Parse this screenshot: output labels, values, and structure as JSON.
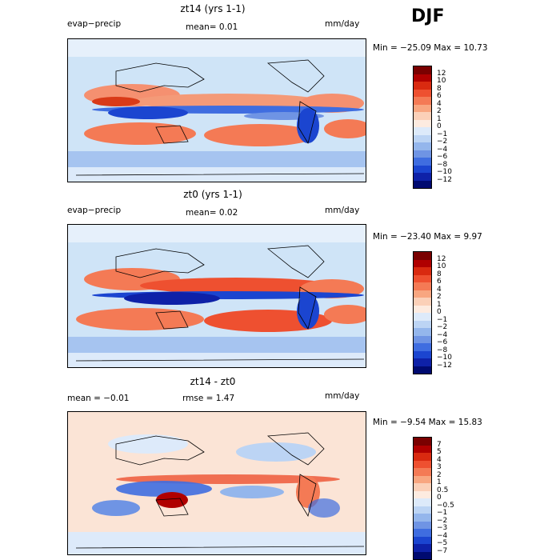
{
  "season": "DJF",
  "panels": [
    {
      "title": "zt14 (yrs 1-1)",
      "left_label": "evap−precip",
      "mid_label": "mean=   0.01",
      "units": "mm/day",
      "minmax": "Min = −25.09 Max =  10.73",
      "colorbar_ticks": [
        "12",
        "10",
        "8",
        "6",
        "4",
        "2",
        "1",
        "0",
        "−1",
        "−2",
        "−4",
        "−6",
        "−8",
        "−10",
        "−12"
      ]
    },
    {
      "title": "zt0 (yrs 1-1)",
      "left_label": "evap−precip",
      "mid_label": "mean=   0.02",
      "units": "mm/day",
      "minmax": "Min = −23.40 Max =   9.97",
      "colorbar_ticks": [
        "12",
        "10",
        "8",
        "6",
        "4",
        "2",
        "1",
        "0",
        "−1",
        "−2",
        "−4",
        "−6",
        "−8",
        "−10",
        "−12"
      ]
    },
    {
      "title": "zt14 - zt0",
      "left_label": "mean =  −0.01",
      "mid_label": "rmse =   1.47",
      "units": "mm/day",
      "minmax": "Min =  −9.54 Max =  15.83",
      "colorbar_ticks": [
        "7",
        "5",
        "4",
        "3",
        "2",
        "1",
        "0.5",
        "0",
        "−0.5",
        "−1",
        "−2",
        "−3",
        "−4",
        "−5",
        "−7"
      ]
    }
  ],
  "colors": {
    "scale": [
      "#7a0000",
      "#b00000",
      "#d92a10",
      "#ee5030",
      "#f47a55",
      "#f8a680",
      "#fbd0b8",
      "#fdebe0",
      "#ddeafa",
      "#bcd4f4",
      "#94b6ec",
      "#6f94e4",
      "#3f6de0",
      "#1b45d0",
      "#0e21a8",
      "#000a70"
    ]
  },
  "chart_data": {
    "type": "heatmap",
    "title": "DJF",
    "subplots": [
      {
        "title": "zt14 (yrs 1-1)",
        "variable": "evap−precip",
        "units": "mm/day",
        "mean": 0.01,
        "min": -25.09,
        "max": 10.73,
        "levels": [
          -12,
          -10,
          -8,
          -6,
          -4,
          -2,
          -1,
          0,
          1,
          2,
          4,
          6,
          8,
          10,
          12
        ]
      },
      {
        "title": "zt0 (yrs 1-1)",
        "variable": "evap−precip",
        "units": "mm/day",
        "mean": 0.02,
        "min": -23.4,
        "max": 9.97,
        "levels": [
          -12,
          -10,
          -8,
          -6,
          -4,
          -2,
          -1,
          0,
          1,
          2,
          4,
          6,
          8,
          10,
          12
        ]
      },
      {
        "title": "zt14 - zt0",
        "units": "mm/day",
        "mean": -0.01,
        "rmse": 1.47,
        "min": -9.54,
        "max": 15.83,
        "levels": [
          -7,
          -5,
          -4,
          -3,
          -2,
          -1,
          -0.5,
          0,
          0.5,
          1,
          2,
          3,
          4,
          5,
          7
        ]
      }
    ]
  }
}
